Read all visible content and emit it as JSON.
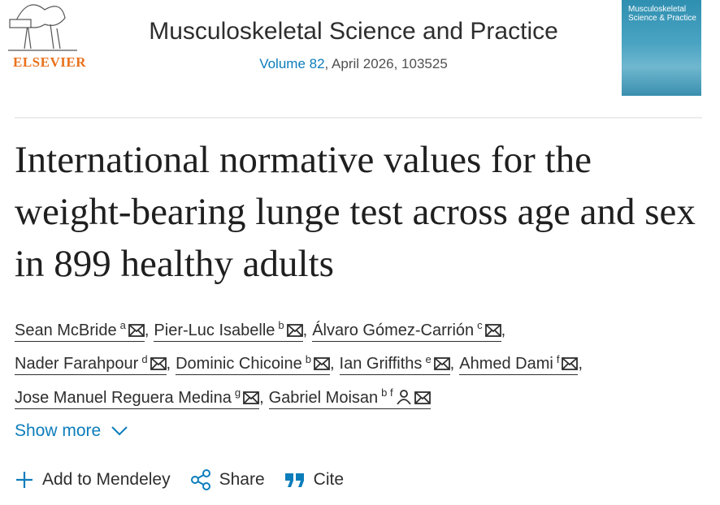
{
  "header": {
    "publisher": "ELSEVIER",
    "journal": "Musculoskeletal Science and Practice",
    "volume": "Volume 82",
    "citation": ", April 2026, 103525",
    "cover_title": "Musculoskeletal Science & Practice"
  },
  "article": {
    "title": "International normative values for the weight-bearing lunge test across age and sex in 899 healthy adults"
  },
  "authors": {
    "separator": ",",
    "lines": [
      [
        {
          "name": "Sean McBride",
          "sup": "a"
        },
        {
          "name": "Pier-Luc Isabelle",
          "sup": "b"
        },
        {
          "name": "Álvaro Gómez-Carrión",
          "sup": "c"
        }
      ],
      [
        {
          "name": "Nader Farahpour",
          "sup": "d"
        },
        {
          "name": "Dominic Chicoine",
          "sup": "b"
        },
        {
          "name": "Ian Griffiths",
          "sup": "e"
        },
        {
          "name": "Ahmed Dami",
          "sup": "f"
        }
      ],
      [
        {
          "name": "Jose Manuel Reguera Medina",
          "sup": "g"
        },
        {
          "name": "Gabriel Moisan",
          "sup": "b f",
          "corresponding": true
        }
      ]
    ]
  },
  "actions": {
    "show_more": "Show more",
    "mendeley": "Add to Mendeley",
    "share": "Share",
    "cite": "Cite"
  }
}
